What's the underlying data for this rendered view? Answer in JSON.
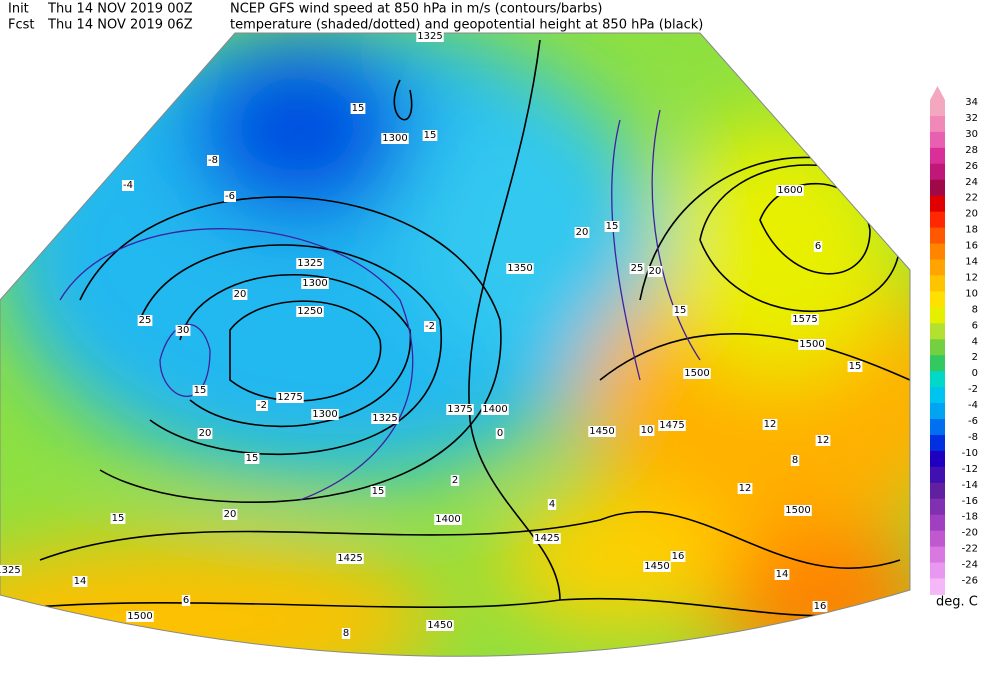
{
  "header": {
    "init_label": "Init",
    "init_time": "Thu 14 NOV 2019 00Z",
    "line1": "NCEP GFS wind speed at 850 hPa in m/s (contours/barbs)",
    "fcst_label": "Fcst",
    "fcst_time": "Thu 14 NOV 2019 06Z",
    "line2": "temperature (shaded/dotted) and geopotential height at 850 hPa (black)"
  },
  "colorbar": {
    "labels": [
      "34",
      "32",
      "30",
      "28",
      "26",
      "24",
      "22",
      "20",
      "18",
      "16",
      "14",
      "12",
      "10",
      "8",
      "6",
      "4",
      "2",
      "0",
      "-2",
      "-4",
      "-6",
      "-8",
      "-10",
      "-12",
      "-14",
      "-16",
      "-18",
      "-20",
      "-22",
      "-24",
      "-26"
    ],
    "colors": [
      "#f4a8c0",
      "#f088b8",
      "#e860b0",
      "#d83098",
      "#c01878",
      "#a00848",
      "#e00000",
      "#ff2800",
      "#ff5800",
      "#ff8400",
      "#ffa400",
      "#ffc400",
      "#ffe000",
      "#e4f000",
      "#b4e030",
      "#74d040",
      "#34c860",
      "#00d8c8",
      "#00c4f0",
      "#00a4f0",
      "#0070f0",
      "#0030e0",
      "#2000c0",
      "#4010b0",
      "#6020a0",
      "#8030b0",
      "#a040c0",
      "#c058d0",
      "#d878e0",
      "#e898f0",
      "#f4b8f8"
    ],
    "unit": "deg. C"
  },
  "map": {
    "height_labels": [
      "1325",
      "1300",
      "1325",
      "1300",
      "1250",
      "1275",
      "1300",
      "1325",
      "1375",
      "1400",
      "1350",
      "1450",
      "1475",
      "1425",
      "1400",
      "1425",
      "1450",
      "1500",
      "1575",
      "1600",
      "1500",
      "1500",
      "1450",
      "1325",
      "1500"
    ],
    "wind_labels": [
      "15",
      "15",
      "20",
      "25",
      "30",
      "15",
      "20",
      "15",
      "15",
      "20",
      "15",
      "25",
      "20",
      "15",
      "20",
      "15",
      "15"
    ],
    "temp_labels": [
      "-8",
      "-6",
      "-4",
      "-2",
      "-2",
      "0",
      "2",
      "4",
      "6",
      "8",
      "10",
      "12",
      "12",
      "14",
      "14",
      "16",
      "16",
      "12",
      "6",
      "8"
    ]
  }
}
